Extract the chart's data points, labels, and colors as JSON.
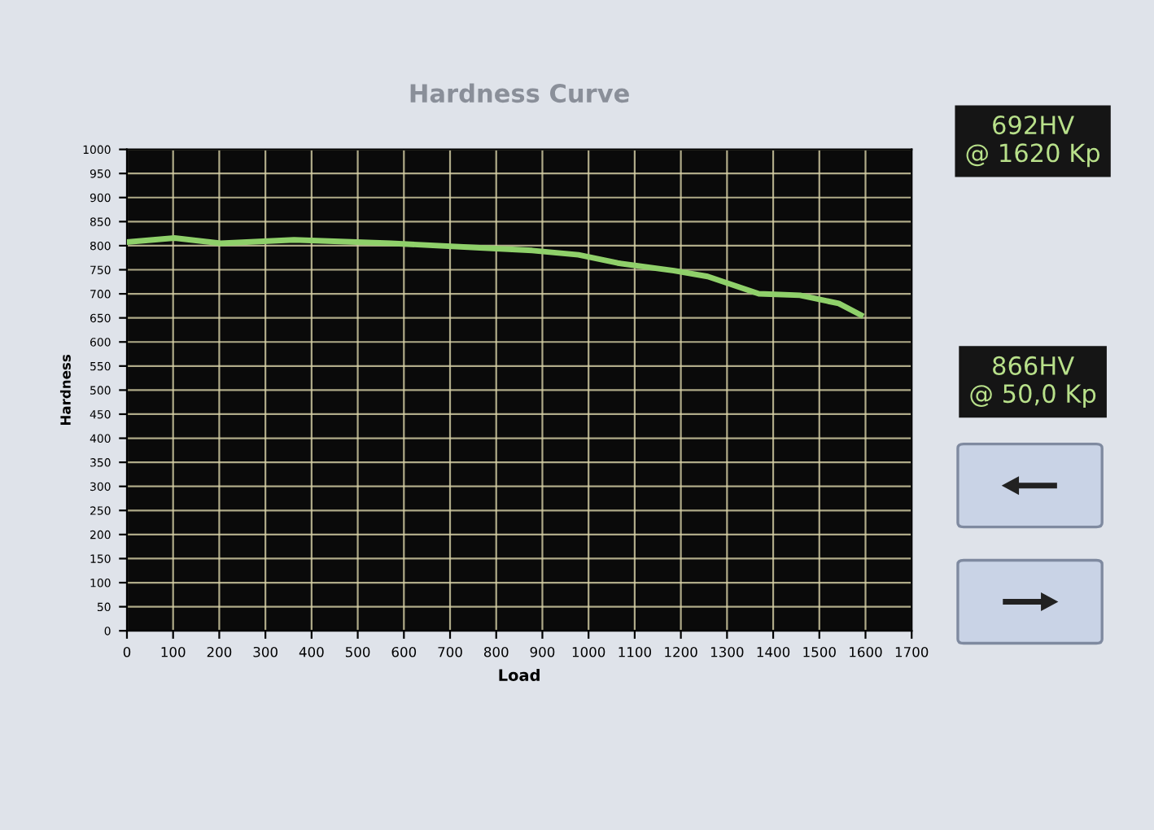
{
  "chart_data": {
    "type": "line",
    "title": "Hardness Curve",
    "xlabel": "Load",
    "ylabel": "Hardness",
    "xlim": [
      0,
      1700
    ],
    "xticks": [
      0,
      100,
      200,
      300,
      400,
      500,
      600,
      700,
      800,
      900,
      1000,
      1100,
      1200,
      1300,
      1400,
      1500,
      1600,
      1700
    ],
    "ylim": [
      0,
      1000
    ],
    "yticks": [
      0,
      50,
      100,
      150,
      200,
      250,
      300,
      350,
      400,
      450,
      500,
      550,
      600,
      650,
      700,
      750,
      800,
      850,
      900,
      950,
      1000
    ],
    "grid": true,
    "legend": false,
    "marker": "none",
    "line_style": "solid",
    "series": [
      {
        "color": "#8fd06a",
        "x": [
          5,
          103,
          203,
          362,
          572,
          756,
          878,
          978,
          1063,
          1185,
          1258,
          1369,
          1458,
          1542,
          1590
        ],
        "values": [
          808,
          816,
          805,
          812,
          805,
          796,
          790,
          781,
          764,
          748,
          736,
          700,
          697,
          680,
          656
        ]
      }
    ],
    "annotations": [
      "692HV\n@ 1620 Kp",
      "866HV\n@ 50,0 Kp"
    ]
  }
}
